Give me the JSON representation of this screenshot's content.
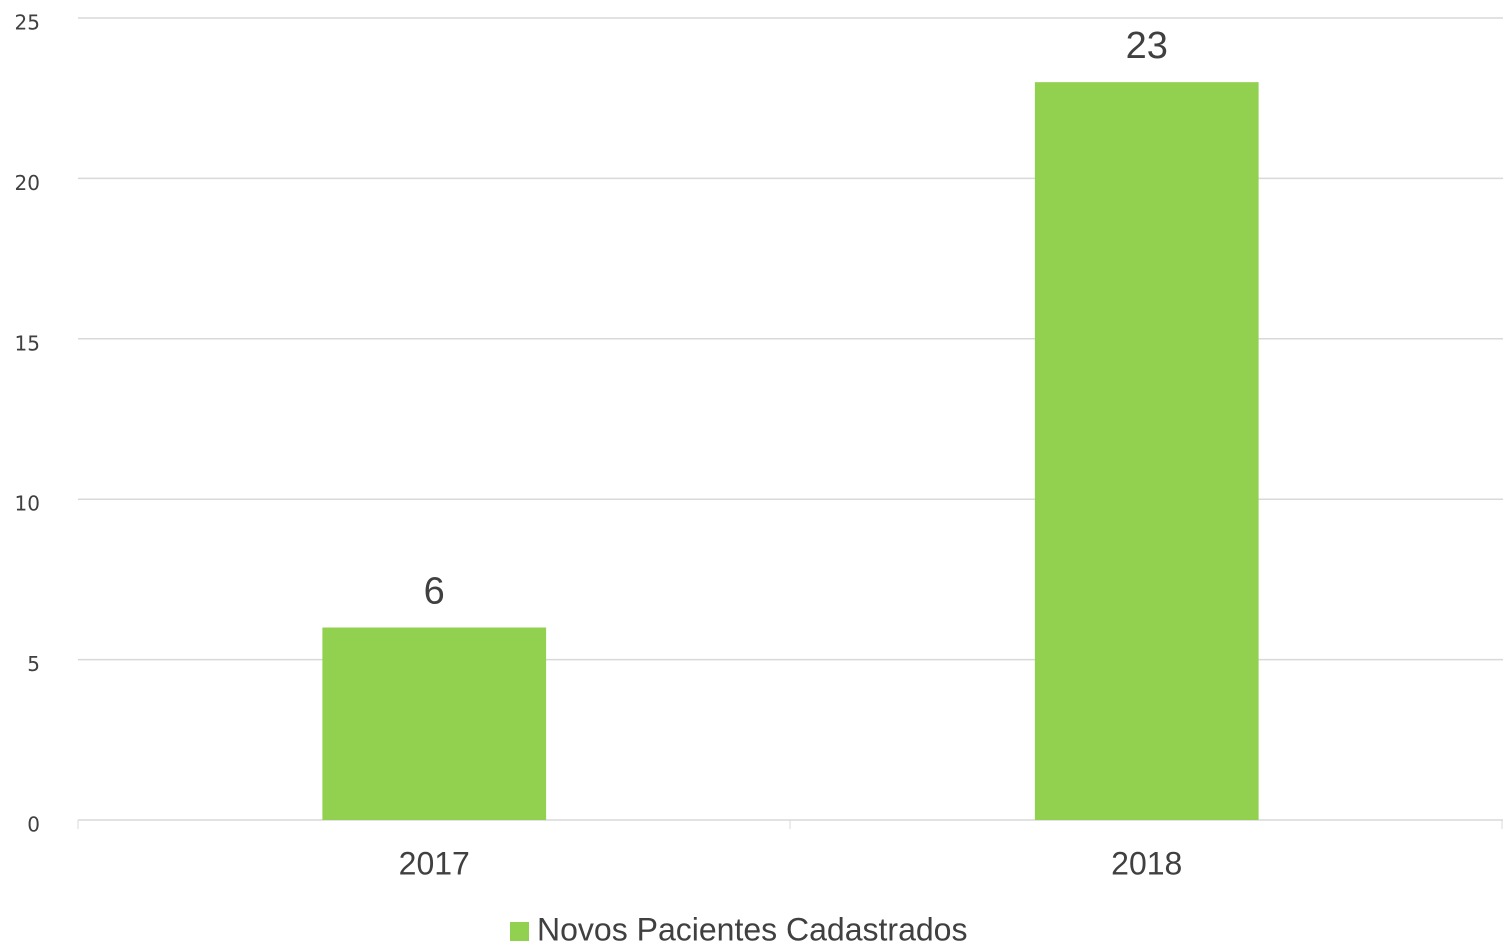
{
  "chart_data": {
    "type": "bar",
    "categories": [
      "2017",
      "2018"
    ],
    "series": [
      {
        "name": "Novos Pacientes Cadastrados",
        "color": "#92d050",
        "values": [
          6,
          23
        ]
      }
    ],
    "ylim": [
      0,
      25
    ],
    "yticks": [
      0,
      5,
      10,
      15,
      20,
      25
    ],
    "grid": true,
    "legend": "bottom"
  }
}
